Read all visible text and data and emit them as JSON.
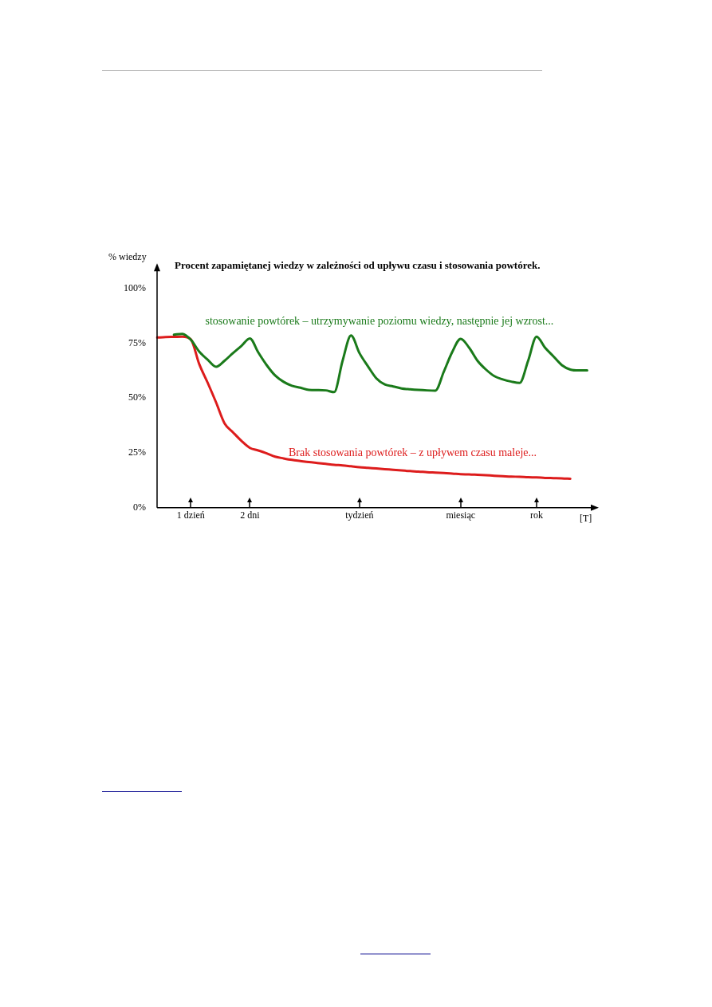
{
  "chart_data": {
    "type": "line",
    "title": "Procent zapamiętanej wiedzy w zależności od upływu czasu i stosowania powtórek.",
    "ylabel": "% wiedzy",
    "xlabel": "[T]",
    "categories": [
      null,
      null,
      null,
      null,
      "1 dzień",
      null,
      null,
      null,
      null,
      null,
      null,
      "2 dni",
      null,
      null,
      null,
      null,
      null,
      null,
      null,
      null,
      null,
      null,
      null,
      null,
      "tydzień",
      null,
      null,
      null,
      null,
      null,
      null,
      null,
      null,
      null,
      null,
      null,
      "miesiąc",
      null,
      null,
      null,
      null,
      null,
      null,
      null,
      null,
      "rok",
      null,
      null,
      null,
      null,
      null,
      null,
      null
    ],
    "ylim": [
      0,
      110
    ],
    "yticks": [
      {
        "value": 0,
        "label": "0%"
      },
      {
        "value": 25,
        "label": "25%"
      },
      {
        "value": 50,
        "label": "50%"
      },
      {
        "value": 75,
        "label": "75%"
      },
      {
        "value": 100,
        "label": "100%"
      }
    ],
    "grid": false,
    "legend": false,
    "marker": "none",
    "line_style": "solid",
    "series": [
      {
        "name": "stosowanie powtórek – utrzymywanie poziomu wiedzy, następnie jej wzrost...",
        "color": "#1a7a1a",
        "values": [
          null,
          null,
          78.9,
          79.3,
          76.6,
          71.2,
          67.5,
          64.3,
          67,
          70.5,
          73.8,
          77.2,
          70.8,
          65,
          60.3,
          57.4,
          55.6,
          54.7,
          53.7,
          53.6,
          53.5,
          52.7,
          67,
          78.5,
          70.5,
          64.5,
          59,
          56.2,
          55.3,
          54.4,
          54,
          53.7,
          53.5,
          53.4,
          62,
          71,
          77,
          73,
          67,
          63,
          60,
          58.5,
          57.5,
          56.9,
          67,
          78,
          73,
          69,
          65,
          63,
          62.6,
          62.6,
          null
        ]
      },
      {
        "name": "Brak stosowania powtórek – z upływem czasu maleje...",
        "color": "#dd1c1c",
        "values": [
          77.6,
          77.8,
          77.9,
          78,
          76.8,
          65.5,
          57,
          48,
          38.5,
          34.4,
          30.5,
          27.3,
          26.1,
          24.8,
          23.3,
          22.5,
          21.8,
          21.3,
          20.8,
          20.4,
          20,
          19.6,
          19.3,
          18.9,
          18.5,
          18.2,
          17.9,
          17.6,
          17.3,
          17,
          16.7,
          16.5,
          16.2,
          16,
          15.8,
          15.6,
          15.3,
          15.2,
          15,
          14.8,
          14.6,
          14.4,
          14.2,
          14.1,
          13.9,
          13.8,
          13.6,
          13.5,
          13.4,
          13.2,
          null,
          null,
          null
        ]
      }
    ]
  }
}
